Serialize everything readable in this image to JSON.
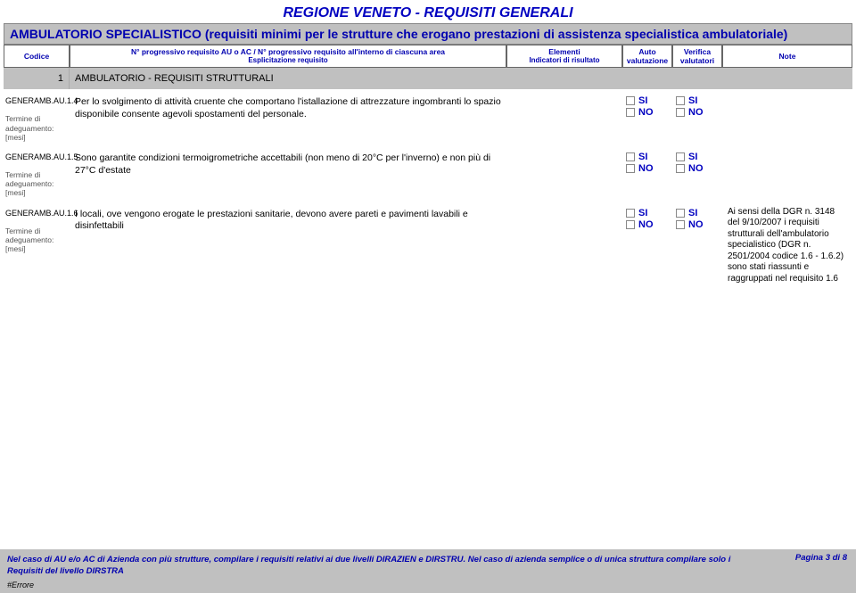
{
  "title": "REGIONE  VENETO - REQUISITI GENERALI",
  "subtitle": "AMBULATORIO SPECIALISTICO (requisiti minimi per le strutture che erogano prestazioni di assistenza specialistica ambulatoriale)",
  "header": {
    "codice": "Codice",
    "prog": "N° progressivo requisito AU o AC / N° progressivo requisito all'interno di ciascuna area",
    "prog_sub": "Esplicitazione requisito",
    "elementi": "Elementi",
    "elementi_sub": "Indicatori di risultato",
    "auto": "Auto valutazione",
    "verifica": "Verifica valutatori",
    "note": "Note"
  },
  "section": {
    "num": "1",
    "text": "AMBULATORIO - REQUISITI STRUTTURALI"
  },
  "check_si": "SI",
  "check_no": "NO",
  "termine": "Termine di adeguamento: [mesi]",
  "reqs": [
    {
      "code": "GENERAMB.AU.1.4",
      "text": "Per lo svolgimento di attività cruente che comportano l'istallazione di attrezzature ingombranti lo spazio disponibile consente agevoli spostamenti del personale.",
      "note": ""
    },
    {
      "code": "GENERAMB.AU.1.5",
      "text": "Sono garantite condizioni termoigrometriche accettabili (non meno di 20°C per l'inverno) e non più di 27°C d'estate",
      "note": ""
    },
    {
      "code": "GENERAMB.AU.1.6",
      "text": "I locali, ove vengono erogate le prestazioni sanitarie, devono avere  pareti e pavimenti lavabili e disinfettabili",
      "note": "Ai sensi della DGR n. 3148 del 9/10/2007 i requisiti strutturali dell'ambulatorio specialistico (DGR n. 2501/2004 codice 1.6 - 1.6.2) sono stati riassunti e raggruppati nel requisito 1.6"
    }
  ],
  "footer": {
    "text": "Nel caso di AU e/o AC di Azienda con più strutture, compilare i requisiti relativi ai due livelli DIRAZIEN e DIRSTRU. Nel caso di azienda semplice o di unica struttura compilare solo i Requisiti del livello DIRSTRA",
    "page": "Pagina 3 di 8",
    "error": "#Errore"
  },
  "colors": {
    "title": "#0000c0",
    "header_bg": "#c0c0c0",
    "text_blue": "#0000b0"
  }
}
